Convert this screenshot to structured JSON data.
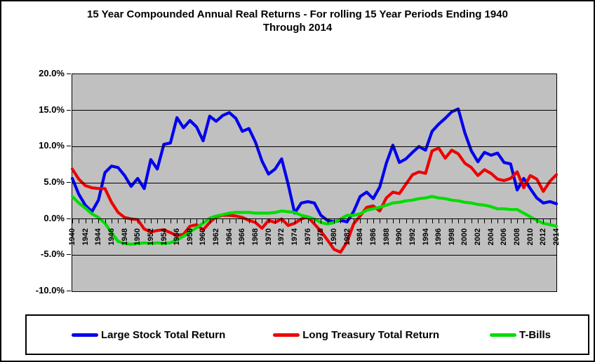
{
  "title": {
    "line1": "15 Year Compounded Annual Real Returns - For rolling 15 Year Periods Ending 1940",
    "line2": "Through 2014"
  },
  "chart_data": {
    "type": "line",
    "x_start": 1940,
    "x_end": 2014,
    "x_label_step": 2,
    "ylim": [
      -10,
      20
    ],
    "ytick_values": [
      20,
      15,
      10,
      5,
      0,
      -5,
      -10
    ],
    "ytick_labels": [
      "20.0%",
      "15.0%",
      "10.0%",
      "5.0%",
      "0.0%",
      "-5.0%",
      "-10.0%"
    ],
    "gridline_values": [
      15,
      10,
      5,
      0,
      -5
    ],
    "plot_bg": "#c0c0c0",
    "grid_color": "#000000",
    "legend_position": "bottom",
    "series": [
      {
        "name": "Large Stock Total Return",
        "color": "#0000ee",
        "values": [
          5.6,
          3.4,
          1.9,
          1.0,
          2.6,
          6.4,
          7.3,
          7.1,
          6.0,
          4.5,
          5.6,
          4.2,
          8.2,
          6.9,
          10.3,
          10.5,
          14.0,
          12.6,
          13.6,
          12.7,
          10.8,
          14.2,
          13.5,
          14.3,
          14.7,
          13.9,
          12.1,
          12.5,
          10.6,
          8.0,
          6.2,
          6.9,
          8.3,
          4.8,
          0.8,
          2.2,
          2.4,
          2.2,
          0.5,
          -0.2,
          -0.4,
          -0.2,
          -0.4,
          1.0,
          3.1,
          3.7,
          2.8,
          4.4,
          7.7,
          10.2,
          7.8,
          8.3,
          9.2,
          10.0,
          9.5,
          12.1,
          13.1,
          13.9,
          14.8,
          15.2,
          11.9,
          9.4,
          7.9,
          9.2,
          8.8,
          9.1,
          7.8,
          7.6,
          4.0,
          5.6,
          4.2,
          2.9,
          2.2,
          2.4,
          2.1
        ]
      },
      {
        "name": "Long Treasury Total Return",
        "color": "#ee0000",
        "values": [
          6.9,
          5.5,
          4.6,
          4.3,
          4.2,
          4.2,
          2.3,
          0.9,
          0.2,
          0.0,
          -0.1,
          -1.4,
          -1.8,
          -1.6,
          -1.5,
          -1.9,
          -2.3,
          -2.1,
          -1.0,
          -0.8,
          -1.5,
          -0.5,
          0.3,
          0.5,
          0.5,
          0.4,
          0.2,
          -0.2,
          -0.5,
          -1.3,
          -0.2,
          -0.5,
          0.0,
          -0.9,
          -0.6,
          0.0,
          0.3,
          -0.7,
          -1.7,
          -2.9,
          -4.2,
          -4.6,
          -3.2,
          -0.7,
          0.4,
          1.6,
          1.8,
          1.1,
          2.9,
          3.7,
          3.5,
          4.8,
          6.1,
          6.5,
          6.3,
          9.4,
          9.8,
          8.4,
          9.5,
          9.0,
          7.7,
          7.1,
          6.0,
          6.8,
          6.3,
          5.5,
          5.3,
          5.6,
          6.5,
          4.3,
          6.0,
          5.5,
          3.8,
          5.2,
          6.1
        ]
      },
      {
        "name": "T-Bills",
        "color": "#00dd00",
        "values": [
          3.1,
          2.2,
          1.5,
          0.7,
          0.2,
          -0.6,
          -1.9,
          -3.1,
          -3.4,
          -3.5,
          -3.4,
          -3.3,
          -3.4,
          -3.3,
          -3.4,
          -3.3,
          -2.9,
          -2.4,
          -1.8,
          -1.2,
          -0.6,
          0.1,
          0.4,
          0.6,
          0.8,
          0.9,
          0.9,
          0.9,
          0.8,
          0.8,
          0.8,
          0.9,
          1.1,
          1.0,
          0.9,
          0.5,
          0.3,
          0.0,
          -0.5,
          -0.7,
          -0.5,
          0.0,
          0.5,
          0.5,
          0.7,
          1.2,
          1.4,
          1.6,
          1.9,
          2.2,
          2.3,
          2.5,
          2.6,
          2.8,
          2.9,
          3.1,
          2.9,
          2.8,
          2.6,
          2.5,
          2.3,
          2.2,
          2.0,
          1.9,
          1.7,
          1.4,
          1.4,
          1.3,
          1.3,
          0.8,
          0.3,
          -0.2,
          -0.6,
          -0.8,
          -1.0
        ]
      }
    ]
  }
}
